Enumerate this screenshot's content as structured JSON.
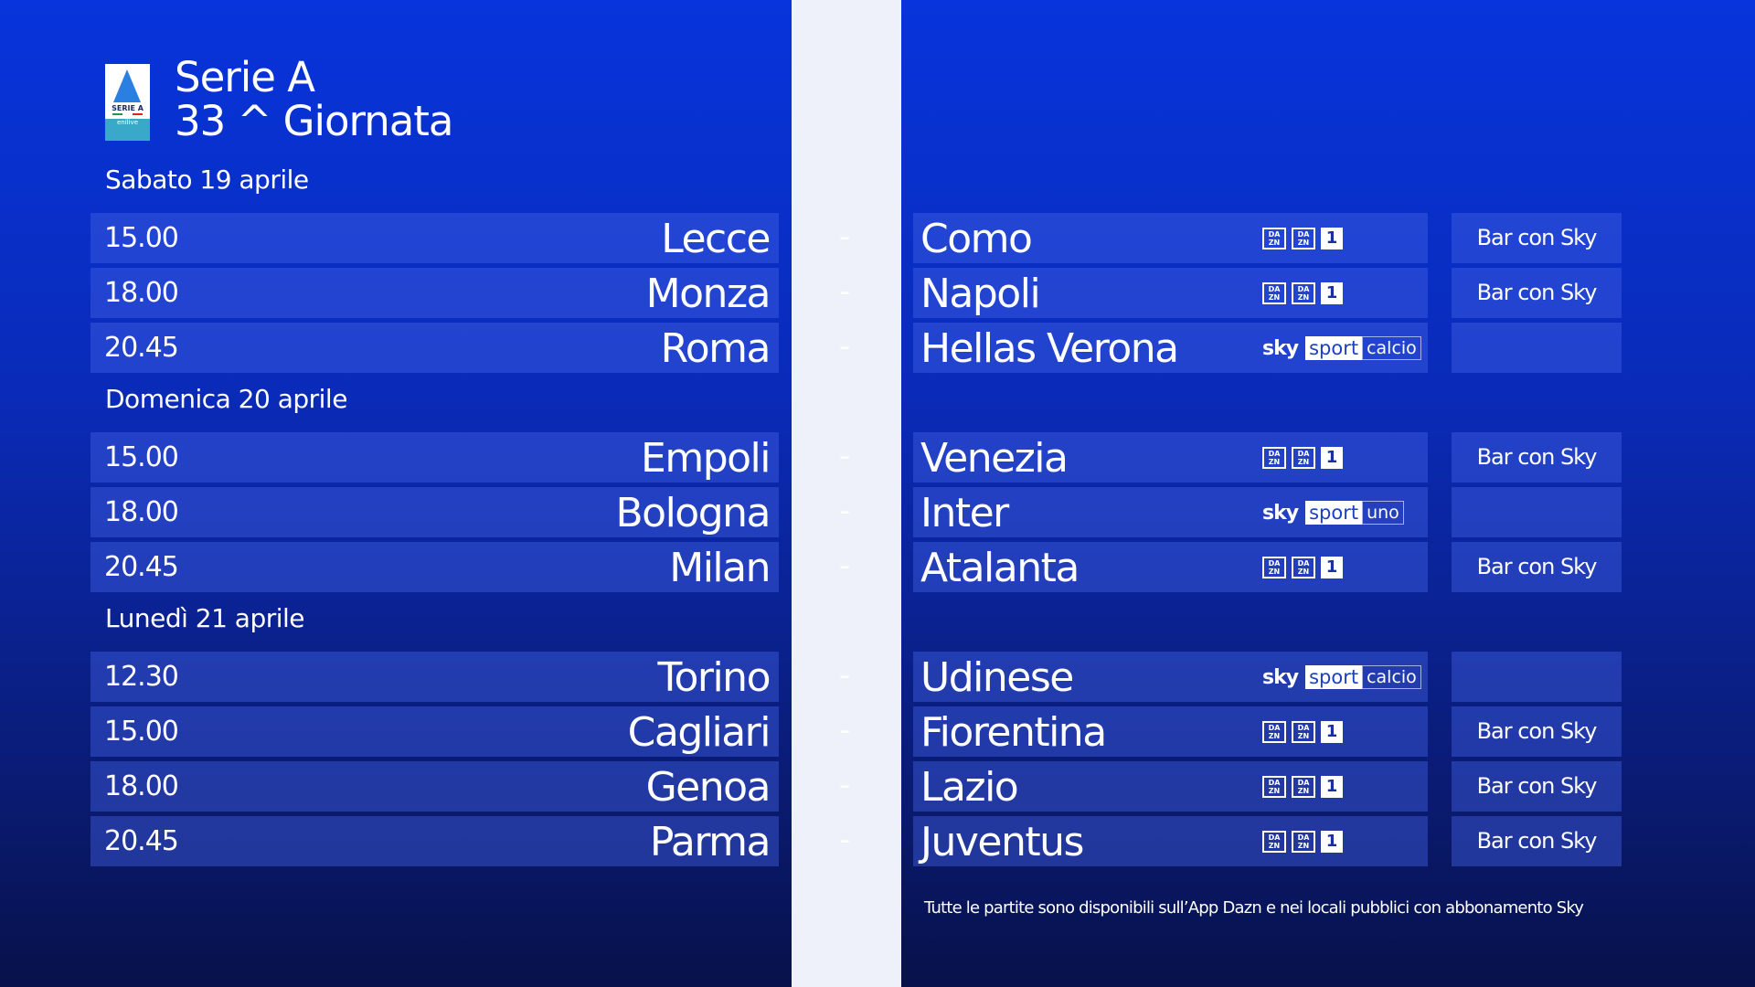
{
  "header": {
    "logo_text": "SERIE A",
    "logo_sub": "enilive",
    "title": "Serie A",
    "subtitle": "33 ^ Giornata"
  },
  "days": [
    {
      "label": "Sabato 19 aprile",
      "matches": [
        {
          "time": "15.00",
          "home": "Lecce",
          "away": "Como",
          "channel": "dazn",
          "bar": "Bar con Sky"
        },
        {
          "time": "18.00",
          "home": "Monza",
          "away": "Napoli",
          "channel": "dazn",
          "bar": "Bar con Sky"
        },
        {
          "time": "20.45",
          "home": "Roma",
          "away": "Hellas Verona",
          "channel": "sky-calcio",
          "bar": ""
        }
      ]
    },
    {
      "label": "Domenica 20 aprile",
      "matches": [
        {
          "time": "15.00",
          "home": "Empoli",
          "away": "Venezia",
          "channel": "dazn",
          "bar": "Bar con Sky"
        },
        {
          "time": "18.00",
          "home": "Bologna",
          "away": "Inter",
          "channel": "sky-uno",
          "bar": ""
        },
        {
          "time": "20.45",
          "home": "Milan",
          "away": "Atalanta",
          "channel": "dazn",
          "bar": "Bar con Sky"
        }
      ]
    },
    {
      "label": "Lunedì 21 aprile",
      "matches": [
        {
          "time": "12.30",
          "home": "Torino",
          "away": "Udinese",
          "channel": "sky-calcio",
          "bar": ""
        },
        {
          "time": "15.00",
          "home": "Cagliari",
          "away": "Fiorentina",
          "channel": "dazn",
          "bar": "Bar con Sky"
        },
        {
          "time": "18.00",
          "home": "Genoa",
          "away": "Lazio",
          "channel": "dazn",
          "bar": "Bar con Sky"
        },
        {
          "time": "20.45",
          "home": "Parma",
          "away": "Juventus",
          "channel": "dazn",
          "bar": "Bar con Sky"
        }
      ]
    }
  ],
  "separator": "-",
  "channels": {
    "dazn_top": "DA",
    "dazn_bottom": "ZN",
    "dazn_one": "1",
    "sky": "sky",
    "sport": "sport",
    "calcio": "calcio",
    "uno": "uno"
  },
  "footer": "Tutte le partite sono disponibili sull’App Dazn e nei locali pubblici con abbonamento Sky"
}
